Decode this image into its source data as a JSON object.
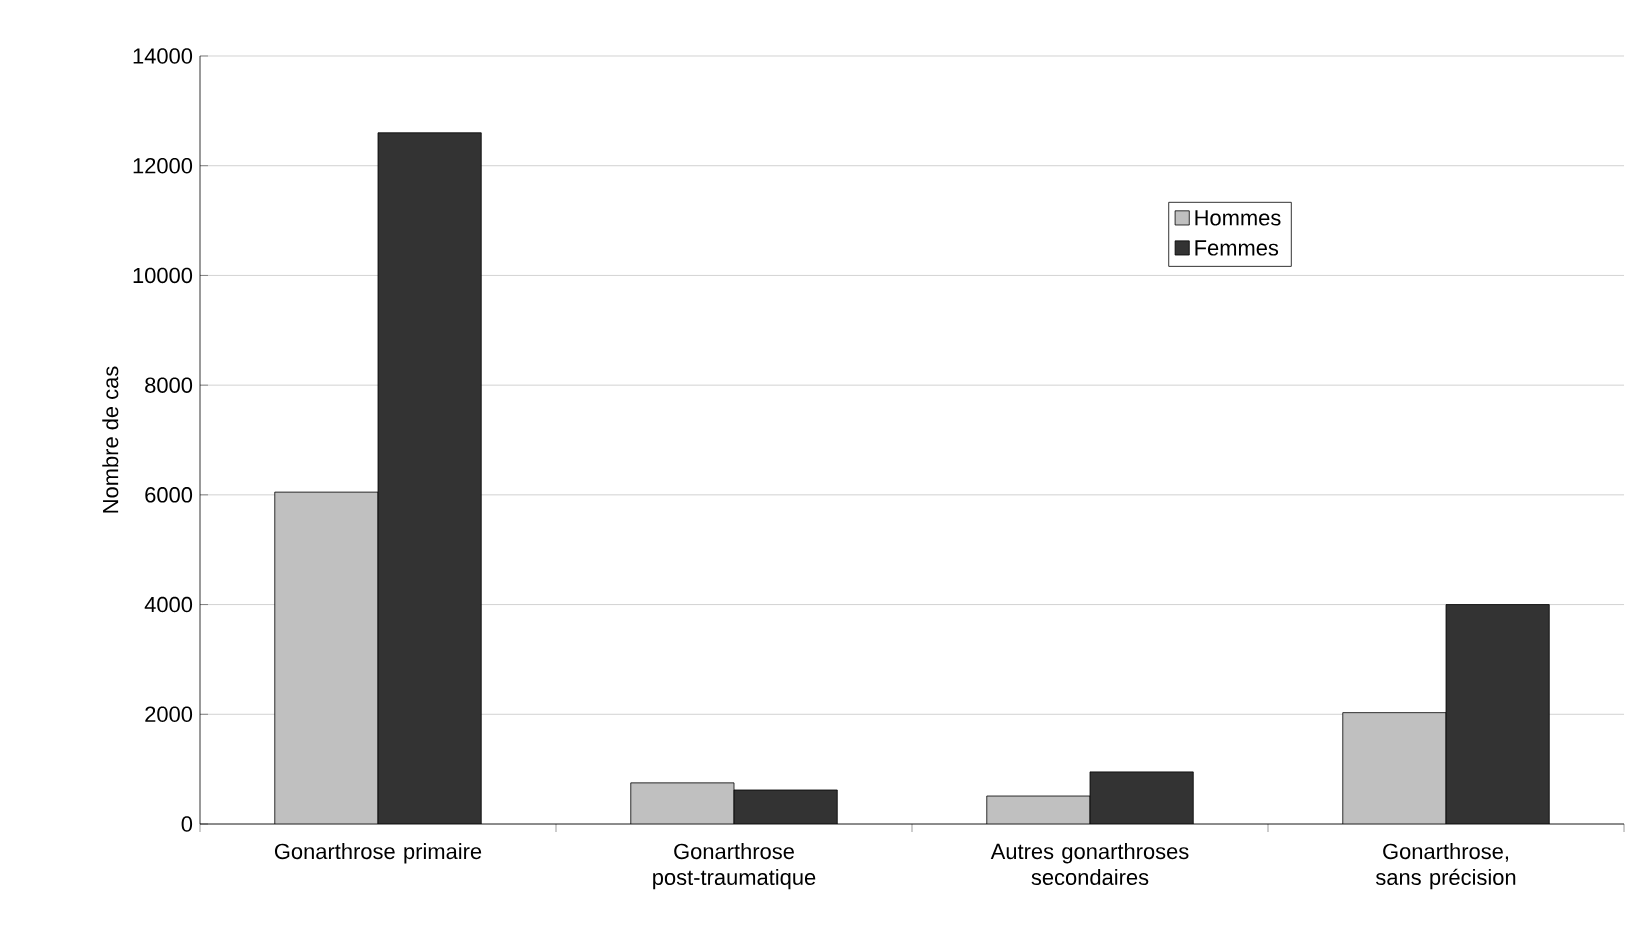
{
  "chart_data": {
    "type": "bar",
    "ylabel": "Nombre de cas",
    "categories": [
      "Gonarthrose primaire",
      "Gonarthrose post-traumatique",
      "Autres gonarthroses secondaires",
      "Gonarthrose, sans précision"
    ],
    "series": [
      {
        "name": "Hommes",
        "color": "#c0c0c0",
        "values": [
          6050,
          750,
          510,
          2030
        ]
      },
      {
        "name": "Femmes",
        "color": "#333333",
        "values": [
          12600,
          620,
          950,
          4000
        ]
      }
    ],
    "ylim": [
      0,
      14000
    ],
    "yticks": [
      0,
      2000,
      4000,
      6000,
      8000,
      10000,
      12000,
      14000
    ],
    "grid": "y",
    "legend": "top right"
  }
}
